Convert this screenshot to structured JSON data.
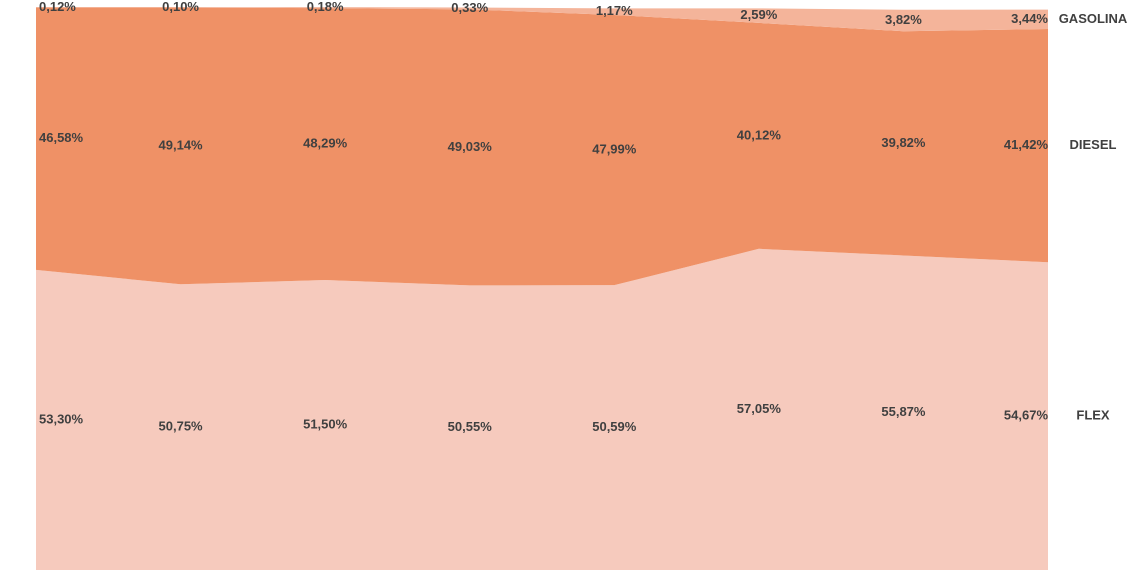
{
  "chart_data": {
    "type": "stacked-area",
    "categories": [
      null,
      null,
      null,
      null,
      null,
      null,
      null,
      null
    ],
    "ylim": [
      0,
      100
    ],
    "series": [
      {
        "name": "FLEX",
        "color": "#f6cabd",
        "values": [
          53.3,
          50.75,
          51.5,
          50.55,
          50.59,
          57.05,
          55.87,
          54.67
        ],
        "value_labels": [
          "53,30%",
          "50,75%",
          "51,50%",
          "50,55%",
          "50,59%",
          "57,05%",
          "55,87%",
          "54,67%"
        ]
      },
      {
        "name": "DIESEL",
        "color": "#ef9166",
        "values": [
          46.58,
          49.14,
          48.29,
          49.03,
          47.99,
          40.12,
          39.82,
          41.42
        ],
        "value_labels": [
          "46,58%",
          "49,14%",
          "48,29%",
          "49,03%",
          "47,99%",
          "40,12%",
          "39,82%",
          "41,42%"
        ]
      },
      {
        "name": "GASOLINA",
        "color": "#f4b49a",
        "values": [
          0.12,
          0.1,
          0.18,
          0.33,
          1.17,
          2.59,
          3.82,
          3.44
        ],
        "value_labels": [
          "0,12%",
          "0,10%",
          "0,18%",
          "0,33%",
          "1,17%",
          "2,59%",
          "3,82%",
          "3,44%"
        ]
      }
    ]
  }
}
